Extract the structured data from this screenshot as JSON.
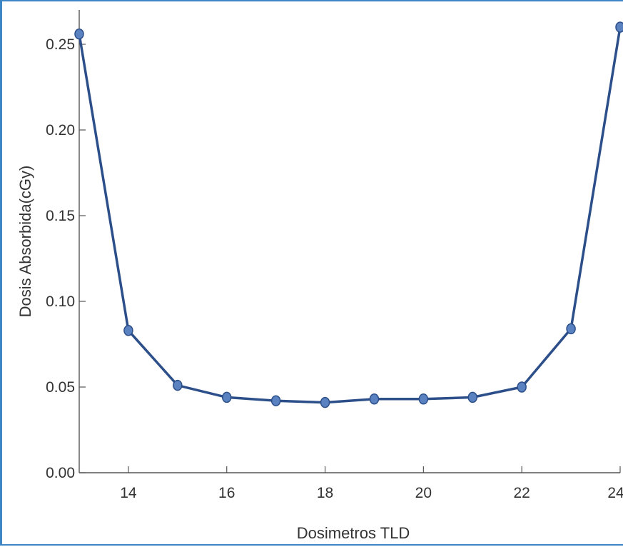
{
  "chart_data": {
    "type": "line",
    "title": "",
    "xlabel": "Dosimetros TLD",
    "ylabel": "Dosis Absorbida(cGy)",
    "xlim": [
      13,
      24
    ],
    "ylim": [
      0,
      0.27
    ],
    "x_ticks": [
      14,
      16,
      18,
      20,
      22,
      24
    ],
    "y_ticks": [
      0.0,
      0.05,
      0.1,
      0.15,
      0.2,
      0.25
    ],
    "y_tick_labels": [
      "0.00",
      "0.05",
      "0.10",
      "0.15",
      "0.20",
      "0.25"
    ],
    "grid": false,
    "series": [
      {
        "x": [
          13,
          14,
          15,
          16,
          17,
          18,
          19,
          20,
          21,
          22,
          23,
          24
        ],
        "y": [
          0.256,
          0.083,
          0.051,
          0.044,
          0.042,
          0.041,
          0.043,
          0.043,
          0.044,
          0.05,
          0.084,
          0.26
        ]
      }
    ],
    "colors": {
      "line": "#2c4f8a",
      "marker": "#5b82c0",
      "marker_stroke": "#2c4f8a",
      "axis": "#555555",
      "frame": "#3f86c6"
    }
  }
}
